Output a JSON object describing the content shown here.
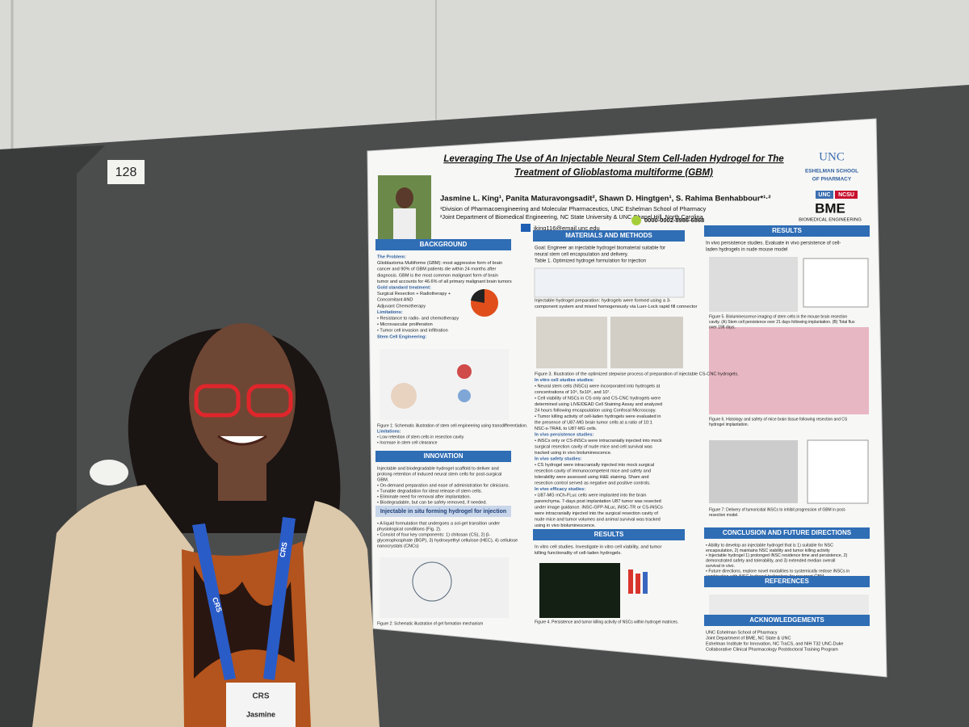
{
  "board_number": "128",
  "poster": {
    "title_lines": [
      "Leveraging The Use of An Injectable Neural Stem Cell-laden Hydrogel for The",
      "Treatment of Glioblastoma multiforme (GBM)"
    ],
    "authors": "Jasmine L. King¹, Panita Maturavongsadit², Shawn D. Hingtgen¹, S. Rahima Benhabbour*¹·²",
    "affiliations": [
      "¹Division of Pharmacoengineering and Molecular Pharmaceutics, UNC Eshelman School of Pharmacy",
      "²Joint Department of Biomedical Engineering, NC State University & UNC Chapel Hill, North Carolina"
    ],
    "email": "jking116@email.unc.edu",
    "orcid": "0000-0002-8986-6868",
    "logo_unc": "UNC",
    "logo_school": [
      "ESHELMAN SCHOOL",
      "OF PHARMACY"
    ],
    "logo_unc2": "UNC",
    "logo_ncsu": "NCSU",
    "logo_bme": "BME",
    "logo_bme_sub": "BIOMEDICAL ENGINEERING",
    "blocks": [
      {
        "heading": "BACKGROUND",
        "lines": [
          "The Problem:",
          "Glioblastoma Multiforme (GBM): most aggressive form of brain",
          "cancer and 90% of GBM patients die within 24 months after",
          "diagnosis. GBM is the most common malignant form of brain",
          "tumor and accounts for 46.6% of all primary malignant brain tumors",
          "Gold standard treatment:",
          "Surgical Resection + Radiotherapy +",
          "Concomitant AND",
          "Adjuvant Chemotherapy",
          "Limitations:",
          "• Resistance to radio- and chemotherapy",
          "• Microvascular proliferation",
          "• Tumor cell invasion and infiltration",
          "Stem Cell Engineering:"
        ]
      },
      {
        "lines": [
          "Figure 1: Schematic illustration of stem cell engineering using transdifferentiation.",
          "Limitations:",
          "• Low retention of stem cells in resection cavity",
          "• Increase in stem cell clearance"
        ]
      },
      {
        "heading": "INNOVATION",
        "lines": [
          "Injectable and biodegradable hydrogel scaffold to deliver and",
          "prolong retention of induced neural stem cells for post-surgical",
          "GBM.",
          "• On-demand preparation and ease of administration for clinicians.",
          "• Tunable degradation for ideal release of stem cells.",
          "• Eliminate need for removal after implantation.",
          "• Biodegradable, but can be safely removed, if needed."
        ]
      },
      {
        "heading": "Injectable in situ forming hydrogel for injection",
        "lines": [
          "• A liquid formulation that undergoes a sol-gel transition under",
          "physiological conditions (Fig. 2).",
          "• Consist of four key components: 1) chitosan (CS), 2) β-",
          "glycerophosphate (BGP), 3) hydroxyethyl cellulose (HEC), 4) cellulose",
          "nanocrystals (CNCs)"
        ]
      },
      {
        "lines": [
          "Figure 2: Schematic illustration of gel formation mechanism"
        ]
      },
      {
        "heading": "MATERIALS AND METHODS",
        "lines": [
          "Goal: Engineer an injectable hydrogel biomaterial suitable for",
          "neural stem cell encapsulation and delivery.",
          "Table 1. Optimized hydrogel formulation for injection"
        ]
      },
      {
        "lines": [
          "Injectable hydrogel preparation: hydrogels were formed using a 3-",
          "component system and mixed homogenously via Luer-Lock rapid fill connector"
        ]
      },
      {
        "lines": [
          "Figure 3. Illustration of the optimized stepwise process of preparation of injectable CS-CNC hydrogels.",
          "In vitro cell studies studies:",
          "• Neural stem cells (NSCs) were incorporated into hydrogels at",
          "concentrations of 10⁶, 5x10⁶, and 10⁷.",
          "• Cell viability of NSCs in CS only and CS-CNC hydrogels were",
          "determined using LIVE/DEAD Cell Staining Assay and analyzed",
          "24 hours following encapsulation using Confocal Microscopy.",
          "• Tumor killing activity of cell-laden hydrogels were evaluated in",
          "the presence of U87-MG brain tumor cells at a ratio of 10:1",
          "NSC-s-TRAIL to U87-MG cells.",
          "In vivo persistence studies:",
          "• iNSCs only or CS-iNSCs were intracranially injected into mock",
          "surgical resection cavity of nude mice and cell survival was",
          "tracked using in vivo bioluminescence.",
          "In vivo safety studies:",
          "• CS hydrogel were intracranially injected into mock surgical",
          "resection cavity of immunocompetent mice and safety and",
          "tolerability were assessed using H&E staining. Sham and",
          "resection control served as negative and positive controls.",
          "In vivo efficacy studies:",
          "• U87-MG mCh-FLuc cells were implanted into the brain",
          "parenchyma. 7-days post implantation U87 tumor was resected",
          "under image guidance. iNSC-GFP-NLuc, iNSC-TR or CS-iNSCs",
          "were intracranially injected into the surgical resection cavity of",
          "nude mice and tumor volumes and animal survival was tracked",
          "using in vivo bioluminescence."
        ]
      },
      {
        "heading": "RESULTS",
        "lines": [
          "In vitro cell studies. Investigate in vitro cell viability, and tumor",
          "killing functionality of cell-laden hydrogels."
        ]
      },
      {
        "lines": [
          "Figure 4. Persistence and tumor killing activity of NSCs within hydrogel matrices."
        ]
      },
      {
        "heading": "RESULTS",
        "lines": [
          "In vivo persistence studies. Evaluate in vivo persistence of cell-",
          "laden hydrogels in nude mouse model"
        ]
      },
      {
        "lines": [
          "Figure 5. Bioluminescence imaging of stem cells in the mouse brain resection",
          "cavity. (A) Stem cell persistence over 21 days following implantation. (B) Total flux",
          "over 198 days."
        ]
      },
      {
        "lines": [
          "Figure 6. Histology and safety of mice brain tissue following resection and CS",
          "hydrogel implantation."
        ]
      },
      {
        "lines": [
          "Figure 7: Delivery of tumoricidal iNSCs to inhibit progression of GBM in post-",
          "resection model."
        ]
      },
      {
        "heading": "CONCLUSION AND FUTURE DIRECTIONS",
        "lines": [
          "• Ability to develop an injectable hydrogel that is 1) suitable for NSC",
          "encapsulation, 2) maintains NSC viability and tumor killing activity",
          "• Injectable hydrogel 1) prolonged iNSC residence time and persistence, 2)",
          "demonstrated safety and tolerability, and 3) extended median overall",
          "survival in vivo.",
          "• Future directions, explore novel modalities to systemically redose iNSCs in",
          "combination with iNSC-hydrogel technology for recurrent GBM."
        ]
      },
      {
        "heading": "REFERENCES"
      },
      {
        "heading": "ACKNOWLEDGEMENTS",
        "lines": [
          "UNC Eshelman School of Pharmacy",
          "Joint Department of BME, NC State & UNC",
          "Eshelman Institute for Innovation, NC TraCS, and NIH T32 UNC-Duke",
          "Collaborative Clinical Pharmacology Postdoctoral Training Program"
        ]
      }
    ]
  },
  "lanyard": "CRS",
  "badge": {
    "logo": "CRS",
    "name": "Jasmine"
  }
}
